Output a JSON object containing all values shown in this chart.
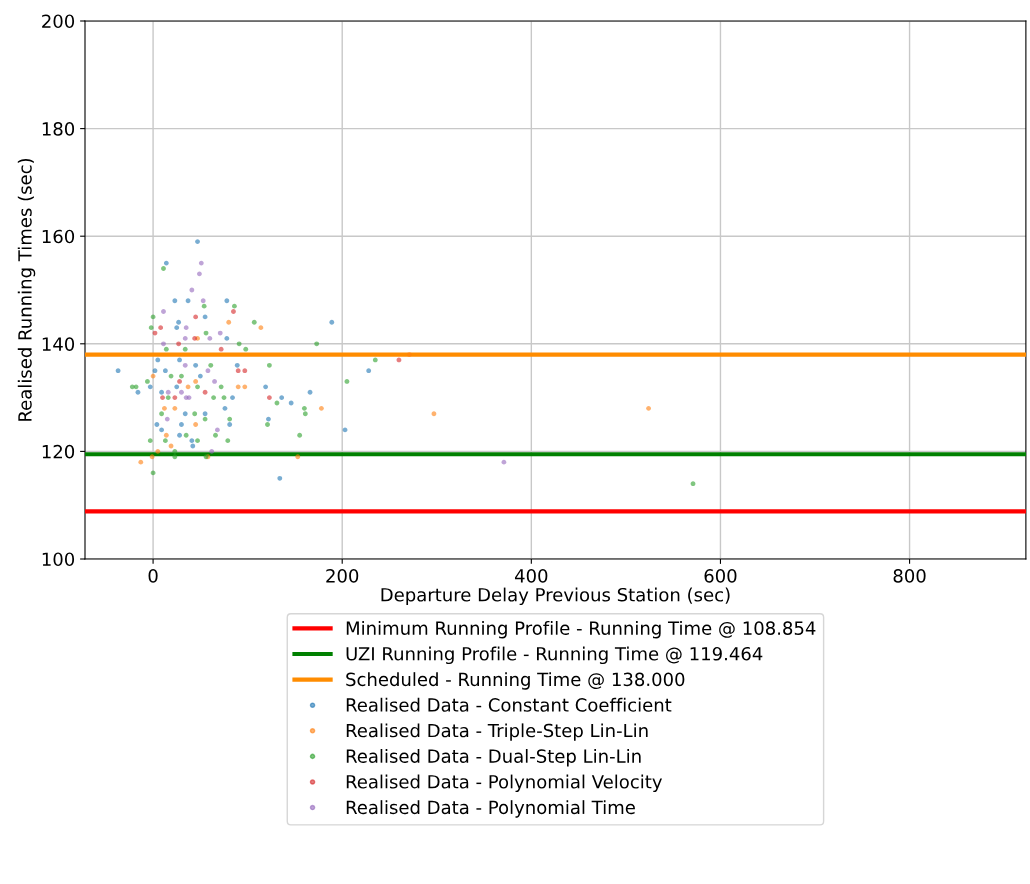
{
  "chart_data": {
    "type": "scatter",
    "xlabel": "Departure Delay Previous Station (sec)",
    "ylabel": "Realised Running Times (sec)",
    "xlim": [
      -72,
      923
    ],
    "ylim": [
      100,
      200
    ],
    "xticks": [
      0,
      200,
      400,
      600,
      800
    ],
    "yticks": [
      100,
      120,
      140,
      160,
      180,
      200
    ],
    "grid": true,
    "legend": "bottom",
    "marker": "circle",
    "ref_lines": [
      {
        "axis": "y",
        "value": 108.854,
        "label": "Minimum Running Profile - Running Time @ 108.854",
        "color": "#ff0000"
      },
      {
        "axis": "y",
        "value": 119.464,
        "label": "UZI Running Profile - Running Time @ 119.464",
        "color": "#008000"
      },
      {
        "axis": "y",
        "value": 138.0,
        "label": "Scheduled - Running Time @ 138.000",
        "color": "#ff8c00"
      }
    ],
    "series": [
      {
        "name": "Realised Data - Constant Coefficient",
        "color": "#1f77b4",
        "x": [
          47,
          14,
          189,
          203,
          134,
          -37,
          228,
          166,
          119,
          136,
          146,
          122,
          -16,
          23,
          37,
          78,
          55,
          27,
          25,
          78,
          5,
          28,
          45,
          2,
          13,
          89,
          50,
          -3,
          9,
          25,
          84,
          34,
          55,
          76,
          4,
          30,
          81,
          9,
          28,
          41,
          42
        ],
        "values": [
          159,
          155,
          144,
          124,
          115,
          135,
          135,
          131,
          132,
          130,
          129,
          126,
          131,
          148,
          148,
          148,
          145,
          144,
          143,
          141,
          137,
          137,
          136,
          135,
          135,
          136,
          134,
          132,
          131,
          132,
          130,
          127,
          127,
          128,
          125,
          125,
          125,
          124,
          123,
          122,
          121
        ]
      },
      {
        "name": "Realised Data - Triple-Step Lin-Lin",
        "color": "#ff7f0e",
        "x": [
          297,
          524,
          178,
          153,
          -13,
          97,
          114,
          80,
          271,
          47,
          0,
          45,
          90,
          23,
          12,
          14,
          19,
          5,
          -1,
          58,
          37,
          45
        ],
        "values": [
          127,
          128,
          128,
          119,
          118,
          132,
          143,
          144,
          138,
          141,
          134,
          133,
          132,
          128,
          128,
          123,
          121,
          120,
          119,
          119,
          132,
          125
        ]
      },
      {
        "name": "Realised Data - Dual-Step Lin-Lin",
        "color": "#2ca02c",
        "x": [
          571,
          173,
          205,
          235,
          160,
          161,
          155,
          131,
          123,
          121,
          107,
          -22,
          0,
          -3,
          11,
          0,
          54,
          86,
          -2,
          56,
          14,
          34,
          91,
          98,
          61,
          19,
          30,
          -6,
          -18,
          72,
          47,
          16,
          64,
          9,
          44,
          75,
          55,
          81,
          13,
          35,
          47,
          66,
          79,
          23,
          56,
          23
        ],
        "values": [
          114,
          140,
          133,
          137,
          128,
          127,
          123,
          129,
          136,
          125,
          144,
          132,
          116,
          122,
          154,
          145,
          147,
          147,
          143,
          142,
          139,
          139,
          140,
          139,
          136,
          134,
          134,
          133,
          132,
          132,
          132,
          130,
          130,
          127,
          127,
          130,
          126,
          126,
          122,
          123,
          122,
          123,
          122,
          119,
          119,
          120
        ]
      },
      {
        "name": "Realised Data - Polynomial Velocity",
        "color": "#d62728",
        "x": [
          260,
          123,
          97,
          85,
          45,
          2,
          8,
          27,
          72,
          90,
          28,
          10,
          23,
          55,
          44
        ],
        "values": [
          137,
          130,
          135,
          146,
          145,
          142,
          143,
          140,
          139,
          135,
          133,
          130,
          130,
          131,
          141
        ]
      },
      {
        "name": "Realised Data - Polynomial Time",
        "color": "#9467bd",
        "x": [
          371,
          51,
          49,
          41,
          11,
          53,
          71,
          35,
          68,
          62,
          34,
          11,
          60,
          34,
          58,
          65,
          16,
          30,
          38,
          35,
          15
        ],
        "values": [
          118,
          155,
          153,
          150,
          146,
          148,
          142,
          143,
          124,
          120,
          141,
          140,
          141,
          136,
          135,
          133,
          131,
          131,
          130,
          130,
          126
        ]
      }
    ]
  }
}
